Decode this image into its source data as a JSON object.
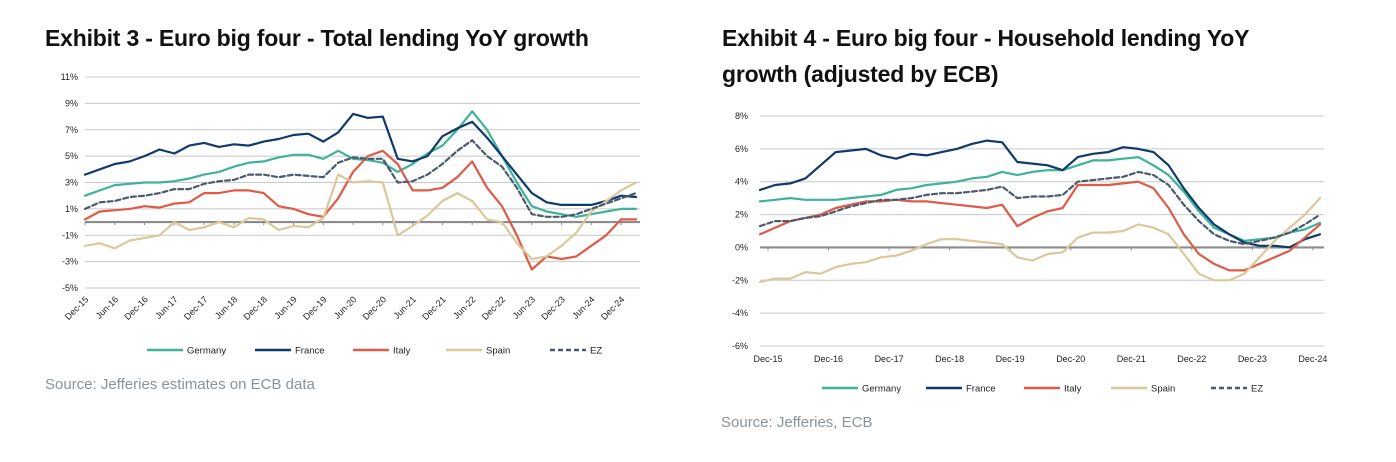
{
  "chart_data": [
    {
      "type": "line",
      "title": "Exhibit 3 - Euro big four - Total lending YoY growth",
      "source": "Source: Jefferies estimates on ECB data",
      "xlabel": "",
      "ylabel": "",
      "ylim": [
        -5,
        11
      ],
      "yticks": [
        11,
        9,
        7,
        5,
        3,
        1,
        -1,
        -3,
        -5
      ],
      "ytick_labels": [
        "11%",
        "9%",
        "7%",
        "5%",
        "3%",
        "1%",
        "-1%",
        "-3%",
        "-5%"
      ],
      "xtick_labels": [
        "Dec-15",
        "Jun-16",
        "Dec-16",
        "Jun-17",
        "Dec-17",
        "Jun-18",
        "Dec-18",
        "Jun-19",
        "Dec-19",
        "Jun-20",
        "Dec-20",
        "Jun-21",
        "Dec-21",
        "Jun-22",
        "Dec-22",
        "Jun-23",
        "Dec-23",
        "Jun-24",
        "Dec-24"
      ],
      "x_label_rotation": "diagonal",
      "grid": true,
      "legend": "bottom",
      "x": [
        "Dec-15",
        "Mar-16",
        "Jun-16",
        "Sep-16",
        "Dec-16",
        "Mar-17",
        "Jun-17",
        "Sep-17",
        "Dec-17",
        "Mar-18",
        "Jun-18",
        "Sep-18",
        "Dec-18",
        "Mar-19",
        "Jun-19",
        "Sep-19",
        "Dec-19",
        "Mar-20",
        "Jun-20",
        "Sep-20",
        "Dec-20",
        "Mar-21",
        "Jun-21",
        "Sep-21",
        "Dec-21",
        "Mar-22",
        "Jun-22",
        "Sep-22",
        "Dec-22",
        "Mar-23",
        "Jun-23",
        "Sep-23",
        "Dec-23",
        "Mar-24",
        "Jun-24",
        "Sep-24",
        "Dec-24",
        "Mar-25"
      ],
      "series": [
        {
          "name": "Germany",
          "color": "#3fb39a",
          "dash": false,
          "values": [
            2.0,
            2.4,
            2.8,
            2.9,
            3.0,
            3.0,
            3.1,
            3.3,
            3.6,
            3.8,
            4.2,
            4.5,
            4.6,
            4.9,
            5.1,
            5.1,
            4.8,
            5.4,
            4.8,
            4.7,
            4.5,
            3.8,
            4.4,
            5.2,
            5.8,
            7.0,
            8.4,
            7.0,
            5.0,
            3.0,
            1.2,
            0.8,
            0.6,
            0.4,
            0.6,
            0.8,
            1.0,
            1.0
          ]
        },
        {
          "name": "France",
          "color": "#0f3a6b",
          "dash": false,
          "values": [
            3.6,
            4.0,
            4.4,
            4.6,
            5.0,
            5.5,
            5.2,
            5.8,
            6.0,
            5.7,
            5.9,
            5.8,
            6.1,
            6.3,
            6.6,
            6.7,
            6.1,
            6.8,
            8.2,
            7.9,
            8.0,
            4.8,
            4.6,
            5.0,
            6.5,
            7.1,
            7.6,
            6.4,
            5.0,
            3.6,
            2.2,
            1.5,
            1.3,
            1.3,
            1.3,
            1.6,
            2.0,
            1.9
          ]
        },
        {
          "name": "Italy",
          "color": "#e05a47",
          "dash": false,
          "values": [
            0.2,
            0.8,
            0.9,
            1.0,
            1.2,
            1.1,
            1.4,
            1.5,
            2.2,
            2.2,
            2.4,
            2.4,
            2.2,
            1.2,
            1.0,
            0.6,
            0.4,
            1.8,
            3.8,
            5.0,
            5.4,
            4.4,
            2.4,
            2.4,
            2.6,
            3.4,
            4.6,
            2.6,
            1.2,
            -1.0,
            -3.6,
            -2.6,
            -2.8,
            -2.6,
            -1.8,
            -1.0,
            0.2,
            0.2
          ]
        },
        {
          "name": "Spain",
          "color": "#dcc79a",
          "dash": false,
          "values": [
            -1.8,
            -1.6,
            -2.0,
            -1.4,
            -1.2,
            -1.0,
            0.0,
            -0.6,
            -0.4,
            0.0,
            -0.4,
            0.3,
            0.2,
            -0.6,
            -0.3,
            -0.4,
            0.3,
            3.6,
            3.0,
            3.1,
            3.0,
            -1.0,
            -0.3,
            0.5,
            1.6,
            2.2,
            1.6,
            0.2,
            0.0,
            -1.6,
            -2.8,
            -2.6,
            -1.8,
            -0.8,
            0.8,
            1.6,
            2.4,
            3.0
          ]
        },
        {
          "name": "EZ",
          "color": "#4a5b70",
          "dash": true,
          "values": [
            1.0,
            1.5,
            1.6,
            1.9,
            2.0,
            2.2,
            2.5,
            2.5,
            2.9,
            3.1,
            3.2,
            3.6,
            3.6,
            3.4,
            3.6,
            3.5,
            3.4,
            4.5,
            4.9,
            4.8,
            4.8,
            3.0,
            3.1,
            3.6,
            4.4,
            5.4,
            6.2,
            5.0,
            4.2,
            2.6,
            0.6,
            0.4,
            0.4,
            0.6,
            1.0,
            1.4,
            1.8,
            2.2
          ]
        }
      ]
    },
    {
      "type": "line",
      "title": "Exhibit 4 - Euro big four - Household lending YoY growth (adjusted by ECB)",
      "source": "Source: Jefferies, ECB",
      "xlabel": "",
      "ylabel": "",
      "ylim": [
        -6,
        8
      ],
      "yticks": [
        8,
        6,
        4,
        2,
        0,
        -2,
        -4,
        -6
      ],
      "ytick_labels": [
        "8%",
        "6%",
        "4%",
        "2%",
        "0%",
        "-2%",
        "-4%",
        "-6%"
      ],
      "xtick_labels": [
        "Dec-15",
        "Dec-16",
        "Dec-17",
        "Dec-18",
        "Dec-19",
        "Dec-20",
        "Dec-21",
        "Dec-22",
        "Dec-23",
        "Dec-24"
      ],
      "x_label_rotation": "horizontal",
      "grid": true,
      "legend": "bottom",
      "x": [
        "Dec-15",
        "Mar-16",
        "Jun-16",
        "Sep-16",
        "Dec-16",
        "Mar-17",
        "Jun-17",
        "Sep-17",
        "Dec-17",
        "Mar-18",
        "Jun-18",
        "Sep-18",
        "Dec-18",
        "Mar-19",
        "Jun-19",
        "Sep-19",
        "Dec-19",
        "Mar-20",
        "Jun-20",
        "Sep-20",
        "Dec-20",
        "Mar-21",
        "Jun-21",
        "Sep-21",
        "Dec-21",
        "Mar-22",
        "Jun-22",
        "Sep-22",
        "Dec-22",
        "Mar-23",
        "Jun-23",
        "Sep-23",
        "Dec-23",
        "Mar-24",
        "Jun-24",
        "Sep-24",
        "Dec-24",
        "Mar-25"
      ],
      "series": [
        {
          "name": "Germany",
          "color": "#3fb39a",
          "dash": false,
          "values": [
            2.8,
            2.9,
            3.0,
            2.9,
            2.9,
            2.9,
            3.0,
            3.1,
            3.2,
            3.5,
            3.6,
            3.8,
            3.9,
            4.0,
            4.2,
            4.3,
            4.6,
            4.4,
            4.6,
            4.7,
            4.7,
            5.0,
            5.3,
            5.3,
            5.4,
            5.5,
            5.0,
            4.4,
            3.4,
            2.2,
            1.2,
            0.8,
            0.4,
            0.5,
            0.6,
            0.9,
            1.1,
            1.5
          ]
        },
        {
          "name": "France",
          "color": "#0f3a6b",
          "dash": false,
          "values": [
            3.5,
            3.8,
            3.9,
            4.2,
            5.0,
            5.8,
            5.9,
            6.0,
            5.6,
            5.4,
            5.7,
            5.6,
            5.8,
            6.0,
            6.3,
            6.5,
            6.4,
            5.2,
            5.1,
            5.0,
            4.7,
            5.5,
            5.7,
            5.8,
            6.1,
            6.0,
            5.8,
            5.0,
            3.6,
            2.4,
            1.4,
            0.8,
            0.3,
            0.1,
            0.1,
            0.0,
            0.5,
            0.8
          ]
        },
        {
          "name": "Italy",
          "color": "#e05a47",
          "dash": false,
          "values": [
            0.8,
            1.2,
            1.6,
            1.8,
            2.0,
            2.4,
            2.6,
            2.8,
            2.8,
            2.9,
            2.8,
            2.8,
            2.7,
            2.6,
            2.5,
            2.4,
            2.6,
            1.3,
            1.8,
            2.2,
            2.4,
            3.8,
            3.8,
            3.8,
            3.9,
            4.0,
            3.6,
            2.4,
            0.8,
            -0.4,
            -1.0,
            -1.4,
            -1.4,
            -1.0,
            -0.6,
            -0.2,
            0.6,
            1.4
          ]
        },
        {
          "name": "Spain",
          "color": "#dcc79a",
          "dash": false,
          "values": [
            -2.1,
            -1.9,
            -1.9,
            -1.5,
            -1.6,
            -1.2,
            -1.0,
            -0.9,
            -0.6,
            -0.5,
            -0.2,
            0.2,
            0.5,
            0.5,
            0.4,
            0.3,
            0.2,
            -0.6,
            -0.8,
            -0.4,
            -0.3,
            0.6,
            0.9,
            0.9,
            1.0,
            1.4,
            1.2,
            0.8,
            -0.4,
            -1.6,
            -2.0,
            -2.0,
            -1.6,
            -0.6,
            0.4,
            1.2,
            2.0,
            3.0
          ]
        },
        {
          "name": "EZ",
          "color": "#4a5b70",
          "dash": true,
          "values": [
            1.3,
            1.6,
            1.6,
            1.8,
            1.9,
            2.2,
            2.5,
            2.7,
            2.9,
            2.9,
            3.0,
            3.2,
            3.3,
            3.3,
            3.4,
            3.5,
            3.7,
            3.0,
            3.1,
            3.1,
            3.2,
            4.0,
            4.1,
            4.2,
            4.3,
            4.6,
            4.4,
            3.8,
            2.6,
            1.6,
            0.8,
            0.4,
            0.2,
            0.4,
            0.6,
            0.9,
            1.4,
            2.0
          ]
        }
      ]
    }
  ]
}
